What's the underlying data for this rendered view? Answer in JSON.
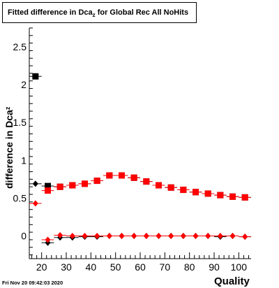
{
  "title": {
    "prefix": "Fitted difference in Dca",
    "subscript": "z",
    "suffix": " for Global Rec All NoHits"
  },
  "footer": {
    "date": "Fri Nov 20 09:42:03 2020"
  },
  "chart_data": {
    "type": "scatter",
    "xlabel": "Quality",
    "ylabel": {
      "main": "difference in Dca",
      "subscript": "z"
    },
    "xlim": [
      15,
      105
    ],
    "ylim": [
      -0.3,
      2.75
    ],
    "x_ticks": [
      20,
      30,
      40,
      50,
      60,
      70,
      80,
      90,
      100
    ],
    "y_ticks": [
      0,
      0.5,
      1,
      1.5,
      2,
      2.5
    ],
    "y_tick_labels": [
      "0",
      "0.5",
      "1",
      "1.5",
      "2",
      "2.5"
    ],
    "grid": false,
    "series": [
      {
        "marker": "square",
        "color": "#000000",
        "x": [
          17.5,
          22.5,
          27.5,
          32.5,
          37.5,
          42.5,
          47.5,
          52.5,
          57.5,
          62.5,
          67.5,
          72.5,
          77.5,
          82.5,
          87.5,
          92.5,
          97.5,
          102.5
        ],
        "y": [
          2.11,
          0.66,
          0.65,
          0.67,
          0.69,
          0.73,
          0.8,
          0.8,
          0.77,
          0.72,
          0.67,
          0.64,
          0.61,
          0.58,
          0.56,
          0.54,
          0.52,
          0.51
        ]
      },
      {
        "marker": "square",
        "color": "#ff0000",
        "x": [
          22.5,
          27.5,
          32.5,
          37.5,
          42.5,
          47.5,
          52.5,
          57.5,
          62.5,
          67.5,
          72.5,
          77.5,
          82.5,
          87.5,
          92.5,
          97.5,
          102.5
        ],
        "y": [
          0.6,
          0.65,
          0.67,
          0.69,
          0.73,
          0.8,
          0.8,
          0.77,
          0.72,
          0.67,
          0.64,
          0.61,
          0.58,
          0.56,
          0.54,
          0.52,
          0.51
        ]
      },
      {
        "marker": "diamond",
        "color": "#000000",
        "x": [
          17.5,
          22.5,
          27.5,
          32.5,
          37.5,
          42.5,
          47.5,
          52.5,
          57.5,
          62.5,
          67.5,
          72.5,
          77.5,
          82.5,
          87.5,
          92.5,
          97.5,
          102.5
        ],
        "y": [
          0.69,
          -0.09,
          -0.02,
          -0.02,
          -0.01,
          -0.01,
          0.0,
          0.0,
          0.0,
          0.0,
          0.0,
          0.0,
          0.0,
          0.0,
          0.0,
          -0.01,
          0.0,
          -0.01
        ]
      },
      {
        "marker": "diamond",
        "color": "#ff0000",
        "x": [
          17.5,
          22.5,
          27.5,
          32.5,
          37.5,
          42.5,
          47.5,
          52.5,
          57.5,
          62.5,
          67.5,
          72.5,
          77.5,
          82.5,
          87.5,
          92.5,
          97.5,
          102.5
        ],
        "y": [
          0.43,
          -0.05,
          0.01,
          0.0,
          0.0,
          0.0,
          0.0,
          0.0,
          0.0,
          0.0,
          0.0,
          0.0,
          0.0,
          0.0,
          0.0,
          0.0,
          0.0,
          -0.01
        ]
      }
    ]
  }
}
